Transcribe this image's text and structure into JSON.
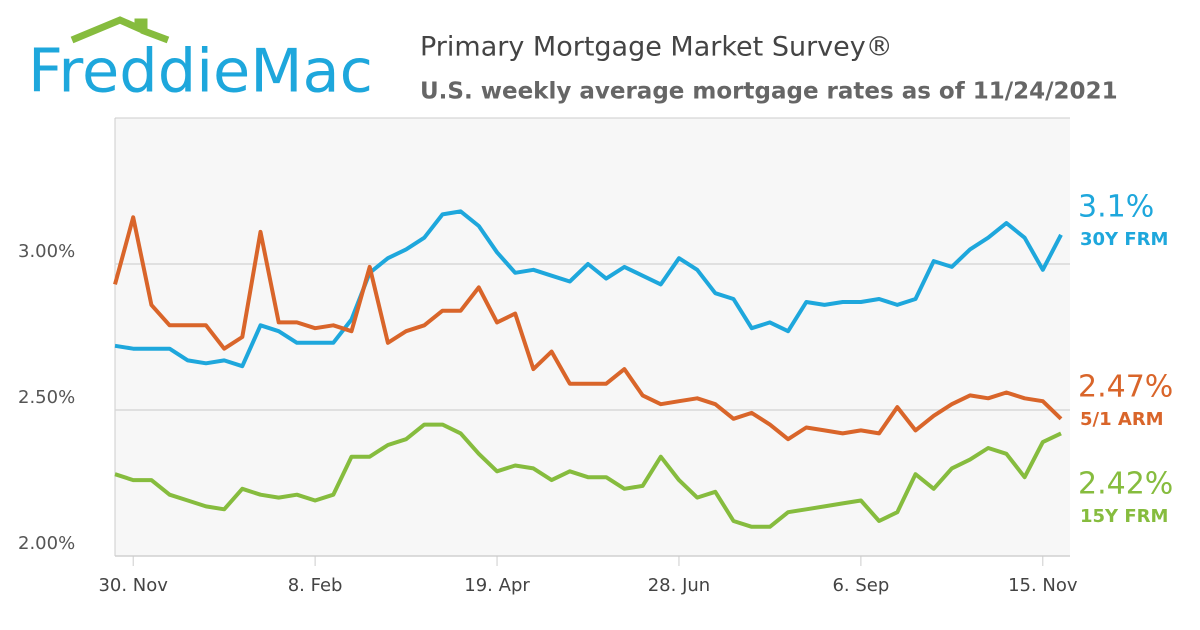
{
  "logo": "FreddieMac",
  "chart_data": {
    "type": "line",
    "title": "Primary Mortgage Market Survey®",
    "subtitle": "U.S. weekly average mortgage rates as of 11/24/2021",
    "categories": [
      null,
      "30. Nov",
      null,
      null,
      null,
      null,
      null,
      null,
      null,
      null,
      null,
      "8. Feb",
      null,
      null,
      null,
      null,
      null,
      null,
      null,
      null,
      null,
      "19. Apr",
      null,
      null,
      null,
      null,
      null,
      null,
      null,
      null,
      null,
      "28. Jun",
      null,
      null,
      null,
      null,
      null,
      null,
      null,
      null,
      null,
      "6. Sep",
      null,
      null,
      null,
      null,
      null,
      null,
      null,
      null,
      null,
      "15. Nov",
      null
    ],
    "ylim": [
      2,
      3.5
    ],
    "yticks": [
      {
        "value": 2,
        "label": "2.00%"
      },
      {
        "value": 2.5,
        "label": "2.50%"
      },
      {
        "value": 3,
        "label": "3.00%"
      }
    ],
    "grid": true,
    "series": [
      {
        "name": "30Y FRM",
        "color": "#1ea7dc",
        "values": [
          2.72,
          2.71,
          2.71,
          2.71,
          2.67,
          2.66,
          2.67,
          2.65,
          2.79,
          2.77,
          2.73,
          2.73,
          2.73,
          2.81,
          2.97,
          3.02,
          3.05,
          3.09,
          3.17,
          3.18,
          3.13,
          3.04,
          2.97,
          2.98,
          2.96,
          2.94,
          3.0,
          2.95,
          2.99,
          2.96,
          2.93,
          3.02,
          2.98,
          2.9,
          2.88,
          2.78,
          2.8,
          2.77,
          2.87,
          2.86,
          2.87,
          2.87,
          2.88,
          2.86,
          2.88,
          3.01,
          2.99,
          3.05,
          3.09,
          3.14,
          3.09,
          2.98,
          3.1
        ],
        "value_labels": [
          null,
          null,
          null,
          null,
          null,
          null,
          null,
          null,
          null,
          null,
          null,
          null,
          null,
          null,
          null,
          null,
          null,
          null,
          null,
          null,
          null,
          null,
          null,
          null,
          null,
          null,
          null,
          null,
          null,
          null,
          null,
          null,
          null,
          null,
          null,
          null,
          null,
          null,
          null,
          null,
          null,
          null,
          null,
          null,
          null,
          null,
          null,
          null,
          null,
          null,
          null,
          null,
          "3.1%"
        ]
      },
      {
        "name": "5/1 ARM",
        "color": "#d9652a",
        "values": [
          2.93,
          3.16,
          2.86,
          2.79,
          2.79,
          2.79,
          2.71,
          2.75,
          3.11,
          2.8,
          2.8,
          2.78,
          2.79,
          2.77,
          2.99,
          2.73,
          2.77,
          2.79,
          2.84,
          2.84,
          2.92,
          2.8,
          2.83,
          2.64,
          2.7,
          2.59,
          2.59,
          2.59,
          2.64,
          2.55,
          2.52,
          2.53,
          2.54,
          2.52,
          2.47,
          2.49,
          2.45,
          2.4,
          2.44,
          2.43,
          2.42,
          2.43,
          2.42,
          2.51,
          2.43,
          2.48,
          2.52,
          2.55,
          2.54,
          2.56,
          2.54,
          2.53,
          2.47
        ],
        "value_labels": [
          null,
          null,
          null,
          null,
          null,
          null,
          null,
          null,
          null,
          null,
          null,
          null,
          null,
          null,
          null,
          null,
          null,
          null,
          null,
          null,
          null,
          null,
          null,
          null,
          null,
          null,
          null,
          null,
          null,
          null,
          null,
          null,
          null,
          null,
          null,
          null,
          null,
          null,
          null,
          null,
          null,
          null,
          null,
          null,
          null,
          null,
          null,
          null,
          null,
          null,
          null,
          null,
          "2.47%"
        ]
      },
      {
        "name": "15Y FRM",
        "color": "#86bc3e",
        "values": [
          2.28,
          2.26,
          2.26,
          2.21,
          2.19,
          2.17,
          2.16,
          2.23,
          2.21,
          2.2,
          2.21,
          2.19,
          2.21,
          2.34,
          2.34,
          2.38,
          2.4,
          2.45,
          2.45,
          2.42,
          2.35,
          2.29,
          2.31,
          2.3,
          2.26,
          2.29,
          2.27,
          2.27,
          2.23,
          2.24,
          2.34,
          2.26,
          2.2,
          2.22,
          2.12,
          2.1,
          2.1,
          2.15,
          2.16,
          2.17,
          2.18,
          2.19,
          2.12,
          2.15,
          2.28,
          2.23,
          2.3,
          2.33,
          2.37,
          2.35,
          2.27,
          2.39,
          2.42
        ],
        "value_labels": [
          null,
          null,
          null,
          null,
          null,
          null,
          null,
          null,
          null,
          null,
          null,
          null,
          null,
          null,
          null,
          null,
          null,
          null,
          null,
          null,
          null,
          null,
          null,
          null,
          null,
          null,
          null,
          null,
          null,
          null,
          null,
          null,
          null,
          null,
          null,
          null,
          null,
          null,
          null,
          null,
          null,
          null,
          null,
          null,
          null,
          null,
          null,
          null,
          null,
          null,
          null,
          null,
          "2.42%"
        ]
      }
    ]
  }
}
